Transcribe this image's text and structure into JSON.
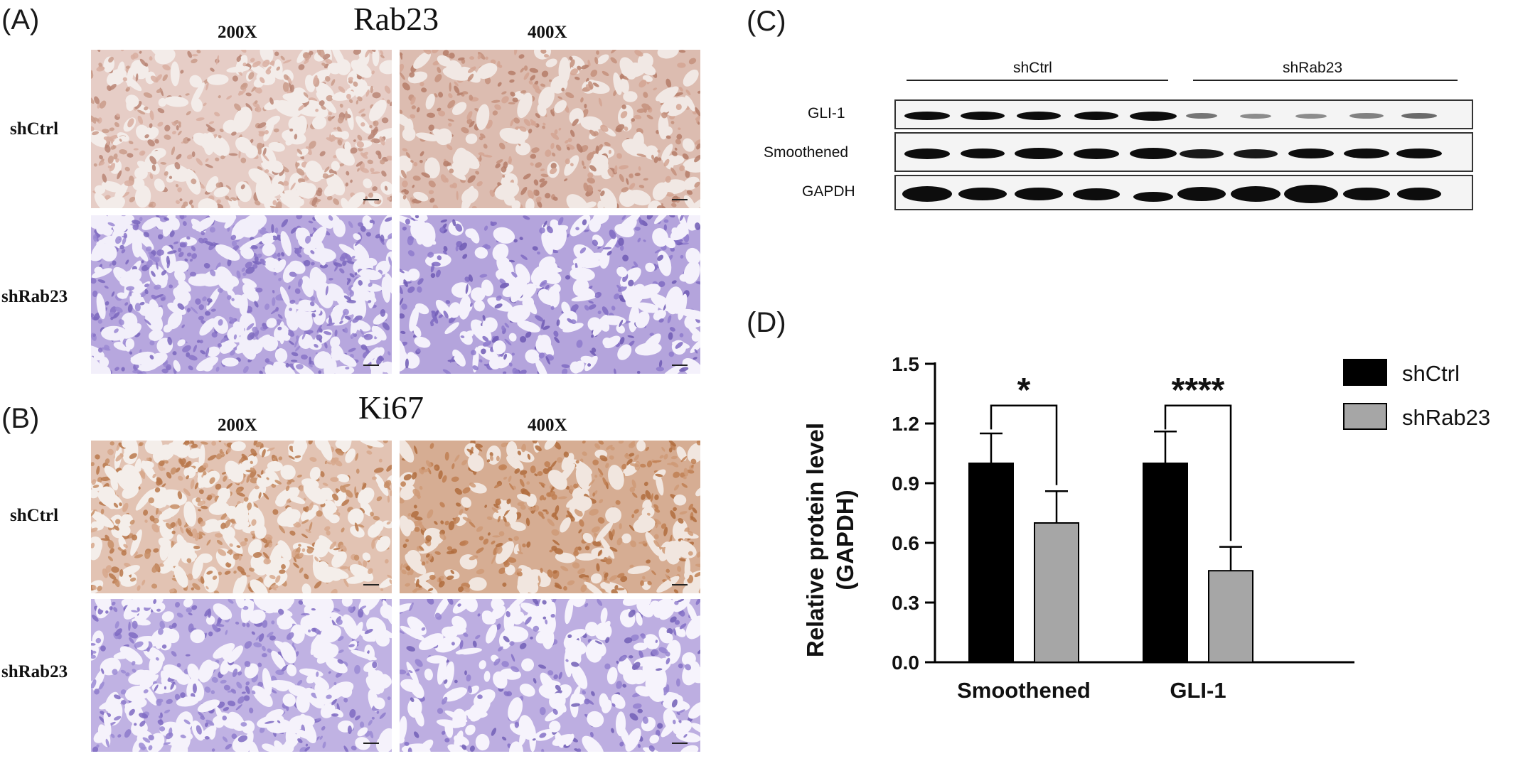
{
  "panels": {
    "a_label": "(A)",
    "b_label": "(B)",
    "c_label": "(C)",
    "d_label": "(D)"
  },
  "ihc": {
    "rab23_title": "Rab23",
    "ki67_title": "Ki67",
    "mag_200": "200X",
    "mag_400": "400X",
    "row_shctrl": "shCtrl",
    "row_shrab23": "shRab23",
    "stain_brown": "#c9977e",
    "stain_purple": "#8b78c8"
  },
  "western": {
    "group_shctrl": "shCtrl",
    "group_shrab23": "shRab23",
    "rows": [
      "GLI-1",
      "Smoothened",
      "GAPDH"
    ],
    "lanes_per_group": 5
  },
  "chart_data": {
    "type": "bar",
    "categories": [
      "Smoothened",
      "GLI-1"
    ],
    "ylabel": "Relative protein level\n(GAPDH)",
    "ylabel_line1": "Relative protein level",
    "ylabel_line2": "(GAPDH)",
    "ylim": [
      0,
      1.5
    ],
    "yticks": [
      "0.0",
      "0.3",
      "0.6",
      "0.9",
      "1.2",
      "1.5"
    ],
    "series": [
      {
        "name": "shCtrl",
        "values": [
          1.0,
          1.0
        ],
        "errors": [
          0.15,
          0.16
        ],
        "color": "#000000"
      },
      {
        "name": "shRab23",
        "values": [
          0.7,
          0.46
        ],
        "errors": [
          0.16,
          0.12
        ],
        "color": "#a6a6a6"
      }
    ],
    "significance": [
      "*",
      "****"
    ],
    "legend_position": "right"
  }
}
